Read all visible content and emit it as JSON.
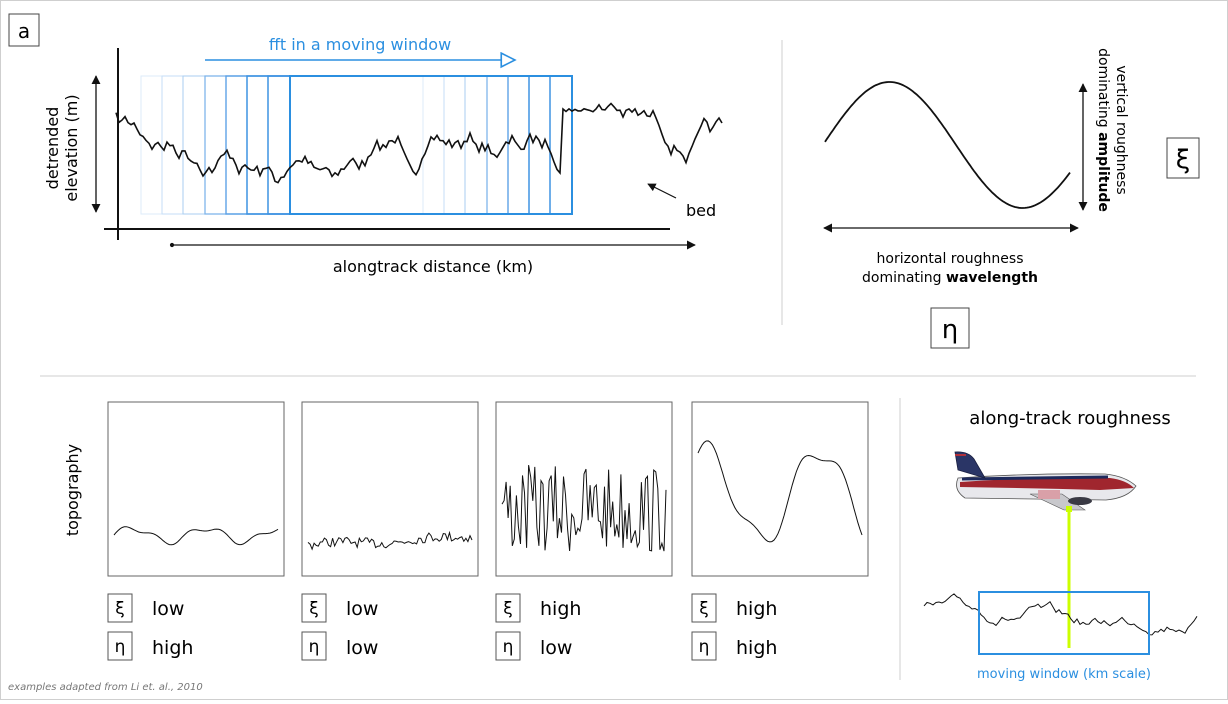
{
  "panel_label": "a",
  "fft": {
    "label": "fft in a moving window",
    "ylabel_line1": "detrended",
    "ylabel_line2": "elevation (m)",
    "xlabel": "alongtrack distance (km)",
    "bed_label": "bed"
  },
  "wave": {
    "vertical_line1": "vertical roughness",
    "vertical_line2_prefix": "dominating ",
    "vertical_line2_bold": "amplitude",
    "horizontal_line1": "horizontal roughness",
    "horizontal_line2_prefix": "dominating ",
    "horizontal_line2_bold": "wavelength",
    "xi_symbol": "ξ",
    "eta_symbol": "η"
  },
  "topography": {
    "ylabel": "topography",
    "panels": [
      {
        "xi": "ξ",
        "xi_value": "low",
        "eta": "η",
        "eta_value": "high"
      },
      {
        "xi": "ξ",
        "xi_value": "low",
        "eta": "η",
        "eta_value": "low"
      },
      {
        "xi": "ξ",
        "xi_value": "high",
        "eta": "η",
        "eta_value": "low"
      },
      {
        "xi": "ξ",
        "xi_value": "high",
        "eta": "η",
        "eta_value": "high"
      }
    ]
  },
  "roughness": {
    "title": "along-track roughness",
    "window_label": "moving window (km scale)"
  },
  "footnote": "examples adapted from Li et. al., 2010",
  "colors": {
    "accent_blue": "#2b8fe0",
    "laser_line": "#ccff00"
  }
}
